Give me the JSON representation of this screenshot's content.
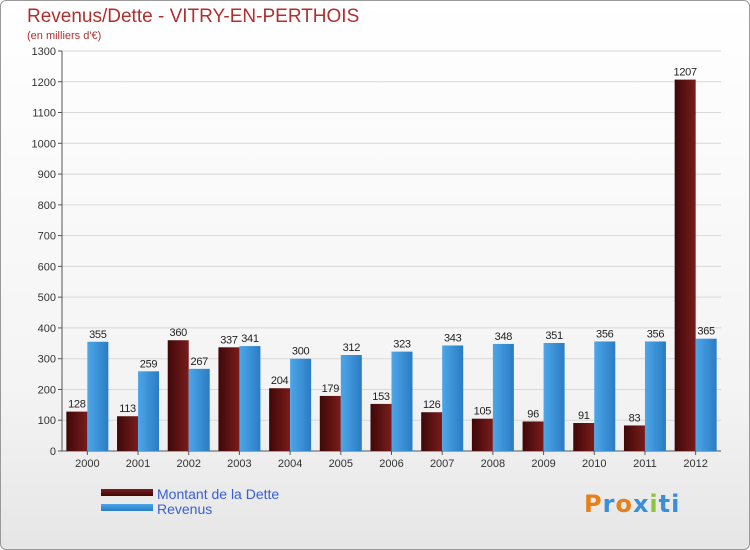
{
  "title": "Revenus/Dette - VITRY-EN-PERTHOIS",
  "subtitle": "(en milliers d'€)",
  "legend": {
    "dette": "Montant de la Dette",
    "revenus": "Revenus"
  },
  "logo": [
    "P",
    "r",
    "o",
    "x",
    "i",
    "t",
    "i"
  ],
  "colors": {
    "dette": "#7a1c1c",
    "dette_dark": "#3f0808",
    "revenus": "#4da6e8",
    "revenus_dark": "#2a7cc4",
    "grid": "#d8d8d8",
    "logo": [
      "#e8801a",
      "#3a8fd8",
      "#e8801a",
      "#3a8fd8",
      "#8cc63f",
      "#3a8fd8",
      "#3a8fd8"
    ]
  },
  "chart_data": {
    "type": "bar",
    "categories": [
      "2000",
      "2001",
      "2002",
      "2003",
      "2004",
      "2005",
      "2006",
      "2007",
      "2008",
      "2009",
      "2010",
      "2011",
      "2012"
    ],
    "series": [
      {
        "name": "Montant de la Dette",
        "values": [
          128,
          113,
          360,
          337,
          204,
          179,
          153,
          126,
          105,
          96,
          91,
          83,
          1207
        ]
      },
      {
        "name": "Revenus",
        "values": [
          355,
          259,
          267,
          341,
          300,
          312,
          323,
          343,
          348,
          351,
          356,
          356,
          365
        ]
      }
    ],
    "ylim": [
      0,
      1300
    ],
    "yticks": [
      0,
      100,
      200,
      300,
      400,
      500,
      600,
      700,
      800,
      900,
      1000,
      1100,
      1200,
      1300
    ],
    "grid": true,
    "legend_position": "bottom-left"
  }
}
